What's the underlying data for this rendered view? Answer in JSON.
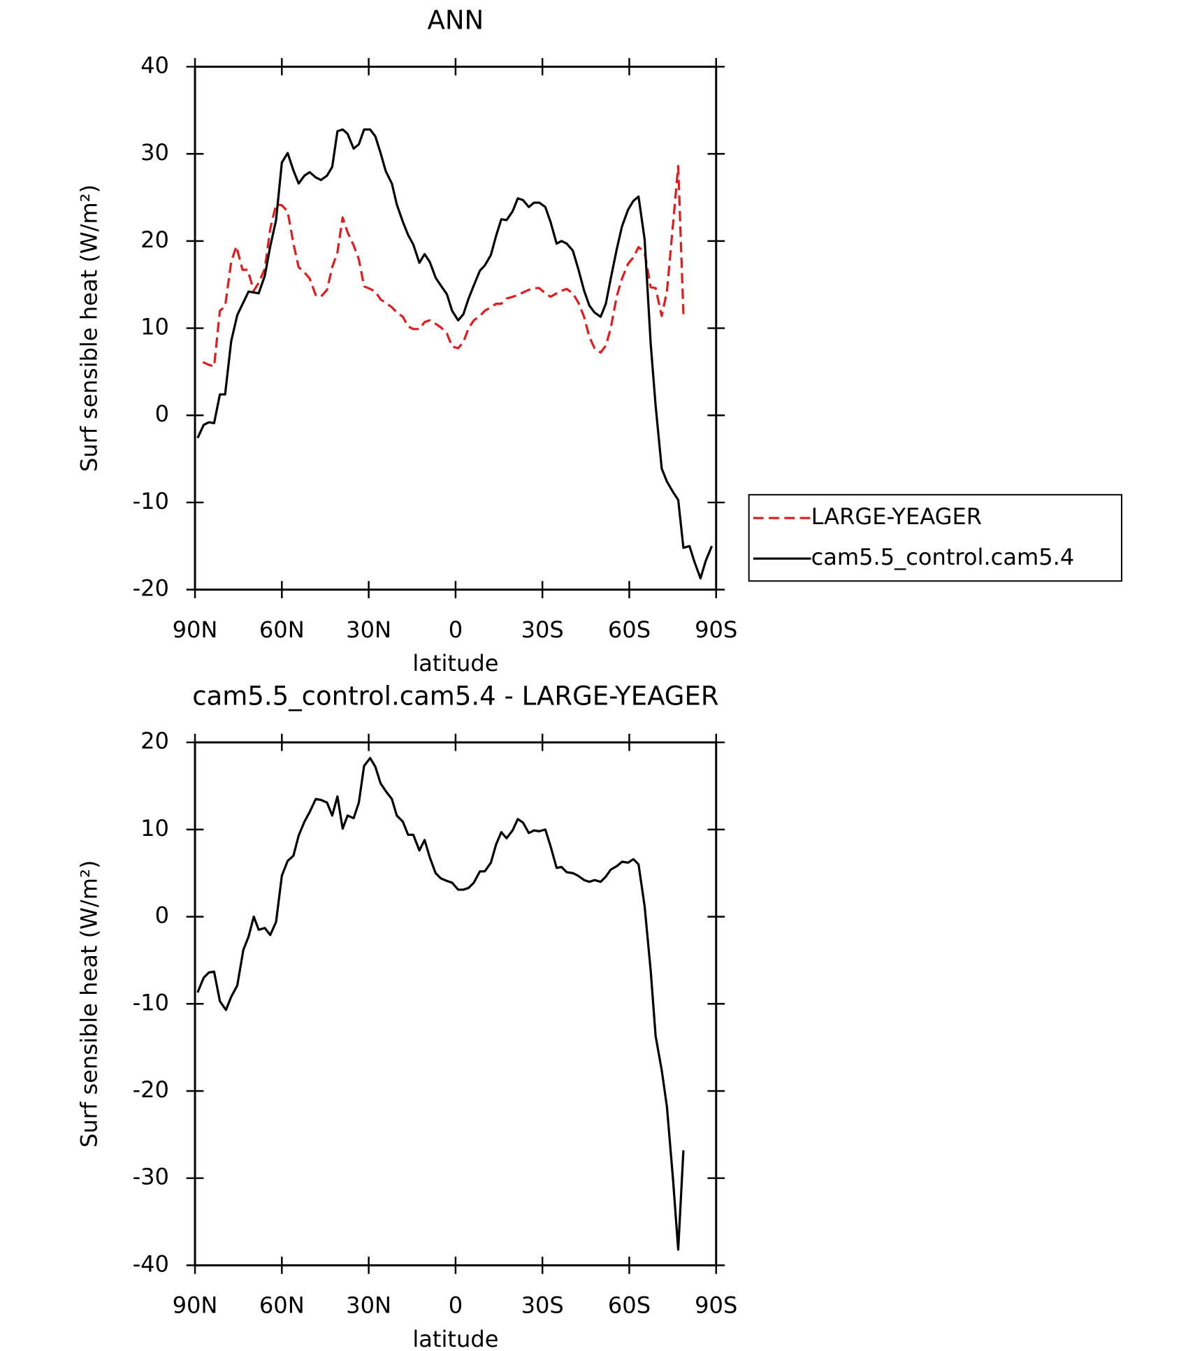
{
  "chart_data": [
    {
      "type": "line",
      "title": "ANN",
      "xlabel": "latitude",
      "ylabel": "Surf sensible heat (W/m²)",
      "xlim": [
        90,
        -90
      ],
      "xticks": [
        {
          "value": 90,
          "label": "90N"
        },
        {
          "value": 60,
          "label": "60N"
        },
        {
          "value": 30,
          "label": "30N"
        },
        0,
        {
          "value": -30,
          "label": "30S"
        },
        {
          "value": -60,
          "label": "60S"
        },
        {
          "value": -90,
          "label": "90S"
        }
      ],
      "ylim": [
        -20,
        40
      ],
      "yticks": [
        -20,
        -10,
        0,
        10,
        20,
        30,
        40
      ],
      "series": [
        {
          "name": "LARGE-YEAGER",
          "color": "#e41a1c",
          "dashed": true,
          "x": [
            87.3,
            85.2,
            83.4,
            81.4,
            79.6,
            77.5,
            75.7,
            73.6,
            71.8,
            69.7,
            68,
            65.9,
            64,
            62,
            60,
            58,
            56,
            54.2,
            52.2,
            50.4,
            48.3,
            46.5,
            44.4,
            42.6,
            40.8,
            39,
            37.3,
            35.2,
            33.4,
            31.6,
            29.5,
            27.7,
            25.9,
            24.1,
            22,
            20.3,
            18.2,
            16.4,
            14.6,
            12.5,
            10.7,
            8.9,
            6.9,
            5.1,
            3,
            1.2,
            -0.9,
            -2.7,
            -4.5,
            -6.3,
            -8.4,
            -10.1,
            -12.2,
            -14,
            -15.8,
            -17.6,
            -19.7,
            -21.5,
            -23.3,
            -25.3,
            -27.1,
            -28.9,
            -31,
            -32.8,
            -34.9,
            -36.6,
            -38.4,
            -40.5,
            -42.3,
            -44.4,
            -46.2,
            -48,
            -50.1,
            -51.9,
            -53.6,
            -55.7,
            -57.5,
            -59.6,
            -61.4,
            -63.2,
            -65.3,
            -67.4,
            -69.1,
            -71.2,
            -73,
            -75.1,
            -76.9,
            -78.7
          ],
          "values": [
            6.1,
            5.8,
            5.6,
            12,
            12.5,
            17.6,
            19.4,
            16.7,
            16.7,
            14.3,
            15.2,
            16.8,
            21.4,
            24.2,
            24.1,
            23.4,
            19.7,
            17,
            16.4,
            15.7,
            13.8,
            13.6,
            14.4,
            17,
            18.7,
            22.7,
            21,
            19.5,
            17.9,
            14.8,
            14.5,
            14.2,
            13.3,
            12.9,
            12.4,
            11.8,
            11.3,
            10.2,
            9.9,
            9.9,
            10.7,
            10.9,
            10.5,
            10.1,
            9.4,
            7.9,
            7.7,
            8.4,
            10,
            10.9,
            11.4,
            12,
            12.4,
            12.8,
            12.8,
            13.4,
            13.6,
            13.8,
            14.1,
            14.4,
            14.6,
            14.6,
            14,
            13.6,
            14,
            14.3,
            14.5,
            14,
            13,
            11.3,
            9,
            7.7,
            7.2,
            8,
            10,
            13.7,
            15.7,
            17.4,
            18.1,
            19.3,
            18.7,
            14.7,
            14.6,
            11.4,
            14.2,
            21.9,
            28.6,
            11.6
          ]
        },
        {
          "name": "cam5.5_control.cam5.4",
          "color": "#000000",
          "dashed": false,
          "x": [
            89.1,
            87,
            85.2,
            83.4,
            81.4,
            79.6,
            77.5,
            75.4,
            71.5,
            68,
            65.9,
            64,
            62,
            60,
            58,
            56,
            54.2,
            52.2,
            50.4,
            48.3,
            46.5,
            44.4,
            42.6,
            40.8,
            39,
            37.3,
            35.2,
            33.4,
            31.6,
            29.5,
            27.7,
            25.9,
            24.1,
            22,
            20.3,
            18.2,
            16.4,
            14.6,
            12.5,
            10.7,
            8.9,
            6.9,
            5.1,
            3,
            1.2,
            -0.9,
            -2.7,
            -4.5,
            -6.3,
            -8.4,
            -10.1,
            -12.2,
            -14,
            -15.8,
            -17.6,
            -19.7,
            -21.5,
            -23.3,
            -25.3,
            -27.1,
            -28.9,
            -31,
            -32.8,
            -34.9,
            -36.6,
            -38.4,
            -40.5,
            -42.3,
            -44.4,
            -46.2,
            -48,
            -50.1,
            -51.9,
            -53.6,
            -55.7,
            -57.5,
            -59.6,
            -61.4,
            -63.2,
            -65.3,
            -67.4,
            -69.1,
            -71.2,
            -73,
            -75.1,
            -76.9,
            -78.7,
            -80.8,
            -82.5,
            -84.6,
            -86.4,
            -88.5
          ],
          "values": [
            -2.6,
            -1.1,
            -0.8,
            -0.9,
            2.4,
            2.4,
            8.5,
            11.5,
            14.2,
            14,
            16,
            19.4,
            22.4,
            29,
            30.1,
            28.1,
            26.6,
            27.5,
            27.9,
            27.3,
            27,
            27.5,
            28.5,
            32.6,
            32.8,
            32.3,
            30.6,
            31.1,
            32.8,
            32.8,
            32,
            30.1,
            28,
            26.6,
            24.2,
            22.2,
            20.7,
            19.6,
            17.5,
            18.5,
            17.6,
            15.8,
            14.9,
            13.9,
            12,
            10.9,
            11.6,
            13.4,
            14.9,
            16.6,
            17.2,
            18.4,
            20.6,
            22.5,
            22.4,
            23.4,
            24.9,
            24.7,
            23.9,
            24.4,
            24.4,
            23.9,
            22.2,
            19.7,
            20,
            19.7,
            18.9,
            16.9,
            14.3,
            12.6,
            11.8,
            11.3,
            12.8,
            15.7,
            19.1,
            21.7,
            23.6,
            24.6,
            25.1,
            20.2,
            8.2,
            1.1,
            -6.1,
            -7.6,
            -8.8,
            -9.7,
            -15.2,
            -15,
            -16.8,
            -18.7,
            -16.7,
            -15
          ]
        }
      ]
    },
    {
      "type": "line",
      "title": "cam5.5_control.cam5.4 - LARGE-YEAGER",
      "xlabel": "latitude",
      "ylabel": "Surf sensible heat (W/m²)",
      "xlim": [
        90,
        -90
      ],
      "xticks": [
        {
          "value": 90,
          "label": "90N"
        },
        {
          "value": 60,
          "label": "60N"
        },
        {
          "value": 30,
          "label": "30N"
        },
        0,
        {
          "value": -30,
          "label": "30S"
        },
        {
          "value": -60,
          "label": "60S"
        },
        {
          "value": -90,
          "label": "90S"
        }
      ],
      "ylim": [
        -40,
        20
      ],
      "yticks": [
        -40,
        -30,
        -20,
        -10,
        0,
        10,
        20
      ],
      "series": [
        {
          "color": "#000000",
          "dashed": false,
          "x": [
            89.1,
            87,
            85.2,
            83.4,
            81.4,
            79.3,
            77.5,
            75.4,
            73.3,
            71.5,
            69.7,
            68,
            65.9,
            64,
            62,
            60,
            58,
            56,
            54.2,
            52.2,
            50.4,
            48.3,
            46.5,
            44.4,
            42.6,
            40.8,
            39,
            37.3,
            35.2,
            33.4,
            31.6,
            29.5,
            27.7,
            25.9,
            24.1,
            22,
            20.3,
            18.2,
            16.4,
            14.6,
            12.5,
            10.7,
            8.9,
            6.9,
            5.1,
            3,
            1.2,
            -0.9,
            -2.7,
            -4.5,
            -6.3,
            -8.4,
            -10.1,
            -12.2,
            -14,
            -15.8,
            -17.6,
            -19.7,
            -21.5,
            -23.3,
            -25.3,
            -27.1,
            -28.9,
            -31,
            -32.8,
            -34.9,
            -36.6,
            -38.4,
            -40.5,
            -42.3,
            -44.4,
            -46.2,
            -48,
            -50.1,
            -51.9,
            -53.6,
            -55.7,
            -57.5,
            -59.6,
            -61.4,
            -63.2,
            -65.3,
            -67.4,
            -69.1,
            -71.2,
            -73,
            -75.1,
            -76.9,
            -78.7
          ],
          "values": [
            -8.7,
            -7,
            -6.4,
            -6.3,
            -9.7,
            -10.7,
            -9.2,
            -7.9,
            -3.8,
            -2.3,
            0,
            -1.5,
            -1.3,
            -2.1,
            -0.6,
            4.7,
            6.4,
            7,
            9.3,
            10.9,
            12,
            13.5,
            13.4,
            13.1,
            11.6,
            13.8,
            10.1,
            11.6,
            11.3,
            13.1,
            17.3,
            18.2,
            17.2,
            15.3,
            14.4,
            13.5,
            11.6,
            10.9,
            9.4,
            9.4,
            7.6,
            8.8,
            6.8,
            5,
            4.4,
            4.1,
            3.9,
            3.1,
            3.1,
            3.3,
            3.9,
            5.2,
            5.2,
            6.2,
            8.3,
            9.7,
            9,
            9.9,
            11.2,
            10.8,
            9.6,
            9.9,
            9.8,
            10,
            8.1,
            5.6,
            5.7,
            5.1,
            5,
            4.7,
            4.2,
            4,
            4.2,
            4,
            4.6,
            5.4,
            5.8,
            6.3,
            6.2,
            6.6,
            6,
            1.2,
            -6.2,
            -13.7,
            -17.6,
            -21.8,
            -30.1,
            -38.2,
            -26.8
          ]
        }
      ]
    }
  ]
}
